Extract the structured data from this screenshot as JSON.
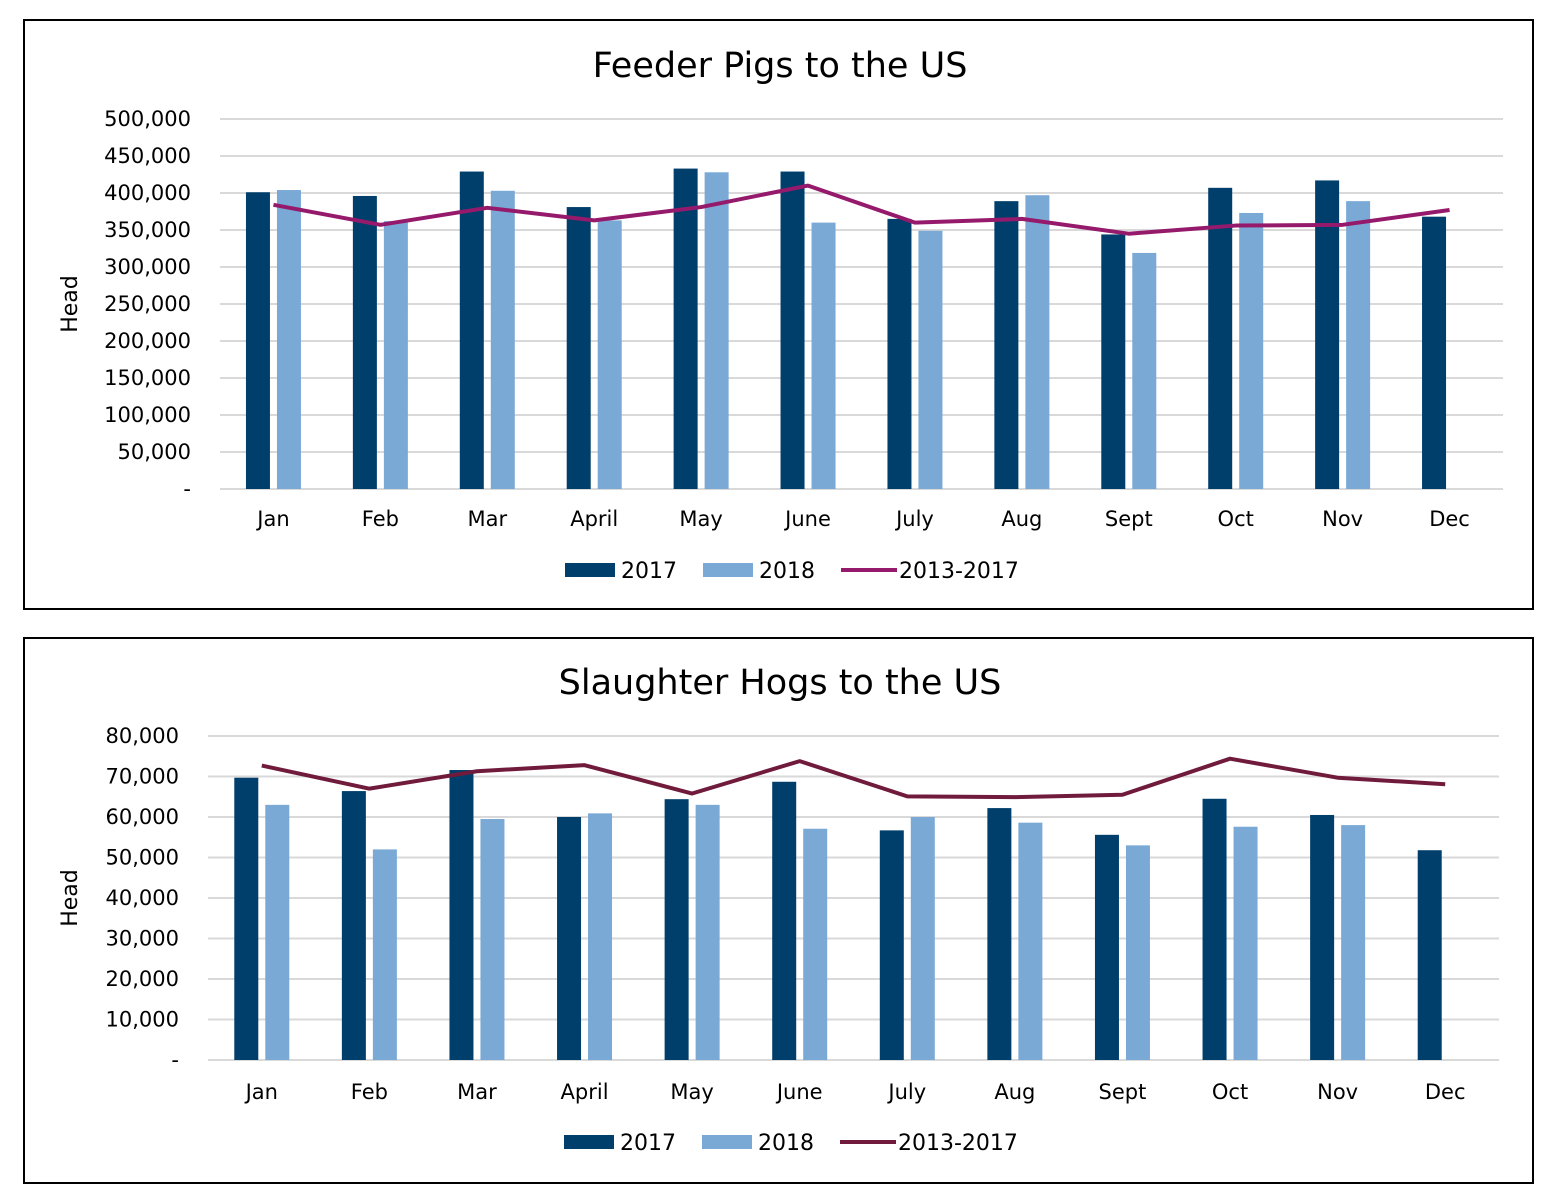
{
  "chart_data": [
    {
      "type": "bar",
      "title": "Feeder Pigs to the US",
      "xlabel": "",
      "ylabel": "Head",
      "ylim": [
        0,
        500000
      ],
      "yticks": [
        0,
        50000,
        100000,
        150000,
        200000,
        250000,
        300000,
        350000,
        400000,
        450000,
        500000
      ],
      "ytick_labels": [
        "-",
        "50,000",
        "100,000",
        "150,000",
        "200,000",
        "250,000",
        "300,000",
        "350,000",
        "400,000",
        "450,000",
        "500,000"
      ],
      "categories": [
        "Jan",
        "Feb",
        "Mar",
        "April",
        "May",
        "June",
        "July",
        "Aug",
        "Sept",
        "Oct",
        "Nov",
        "Dec"
      ],
      "grid": true,
      "legend_position": "bottom",
      "series": [
        {
          "name": "2017",
          "kind": "bar",
          "color": "#003f6b",
          "values": [
            401000,
            396000,
            429000,
            381000,
            433000,
            429000,
            365000,
            389000,
            344000,
            407000,
            417000,
            368000
          ]
        },
        {
          "name": "2018",
          "kind": "bar",
          "color": "#7aa9d6",
          "values": [
            404000,
            362000,
            403000,
            363000,
            428000,
            360000,
            349000,
            397000,
            319000,
            373000,
            389000,
            null
          ]
        },
        {
          "name": "2013-2017",
          "kind": "line",
          "color": "#951a6b",
          "values": [
            384000,
            357000,
            380000,
            363000,
            381000,
            410000,
            360000,
            365000,
            345000,
            356000,
            357000,
            377000
          ]
        }
      ]
    },
    {
      "type": "bar",
      "title": "Slaughter Hogs to the US",
      "xlabel": "",
      "ylabel": "Head",
      "ylim": [
        0,
        80000
      ],
      "yticks": [
        0,
        10000,
        20000,
        30000,
        40000,
        50000,
        60000,
        70000,
        80000
      ],
      "ytick_labels": [
        "-",
        "10,000",
        "20,000",
        "30,000",
        "40,000",
        "50,000",
        "60,000",
        "70,000",
        "80,000"
      ],
      "categories": [
        "Jan",
        "Feb",
        "Mar",
        "April",
        "May",
        "June",
        "July",
        "Aug",
        "Sept",
        "Oct",
        "Nov",
        "Dec"
      ],
      "grid": true,
      "legend_position": "bottom",
      "series": [
        {
          "name": "2017",
          "kind": "bar",
          "color": "#003f6b",
          "values": [
            69700,
            66400,
            71600,
            60000,
            64400,
            68700,
            56700,
            62200,
            55600,
            64500,
            60500,
            51800
          ]
        },
        {
          "name": "2018",
          "kind": "bar",
          "color": "#7aa9d6",
          "values": [
            63000,
            52000,
            59500,
            60900,
            63000,
            57100,
            60000,
            58600,
            53000,
            57600,
            58000,
            null
          ]
        },
        {
          "name": "2013-2017",
          "kind": "line",
          "color": "#701b3c",
          "values": [
            72700,
            67000,
            71300,
            72800,
            65800,
            73800,
            65100,
            64900,
            65500,
            74400,
            69700,
            68100
          ]
        }
      ]
    }
  ]
}
